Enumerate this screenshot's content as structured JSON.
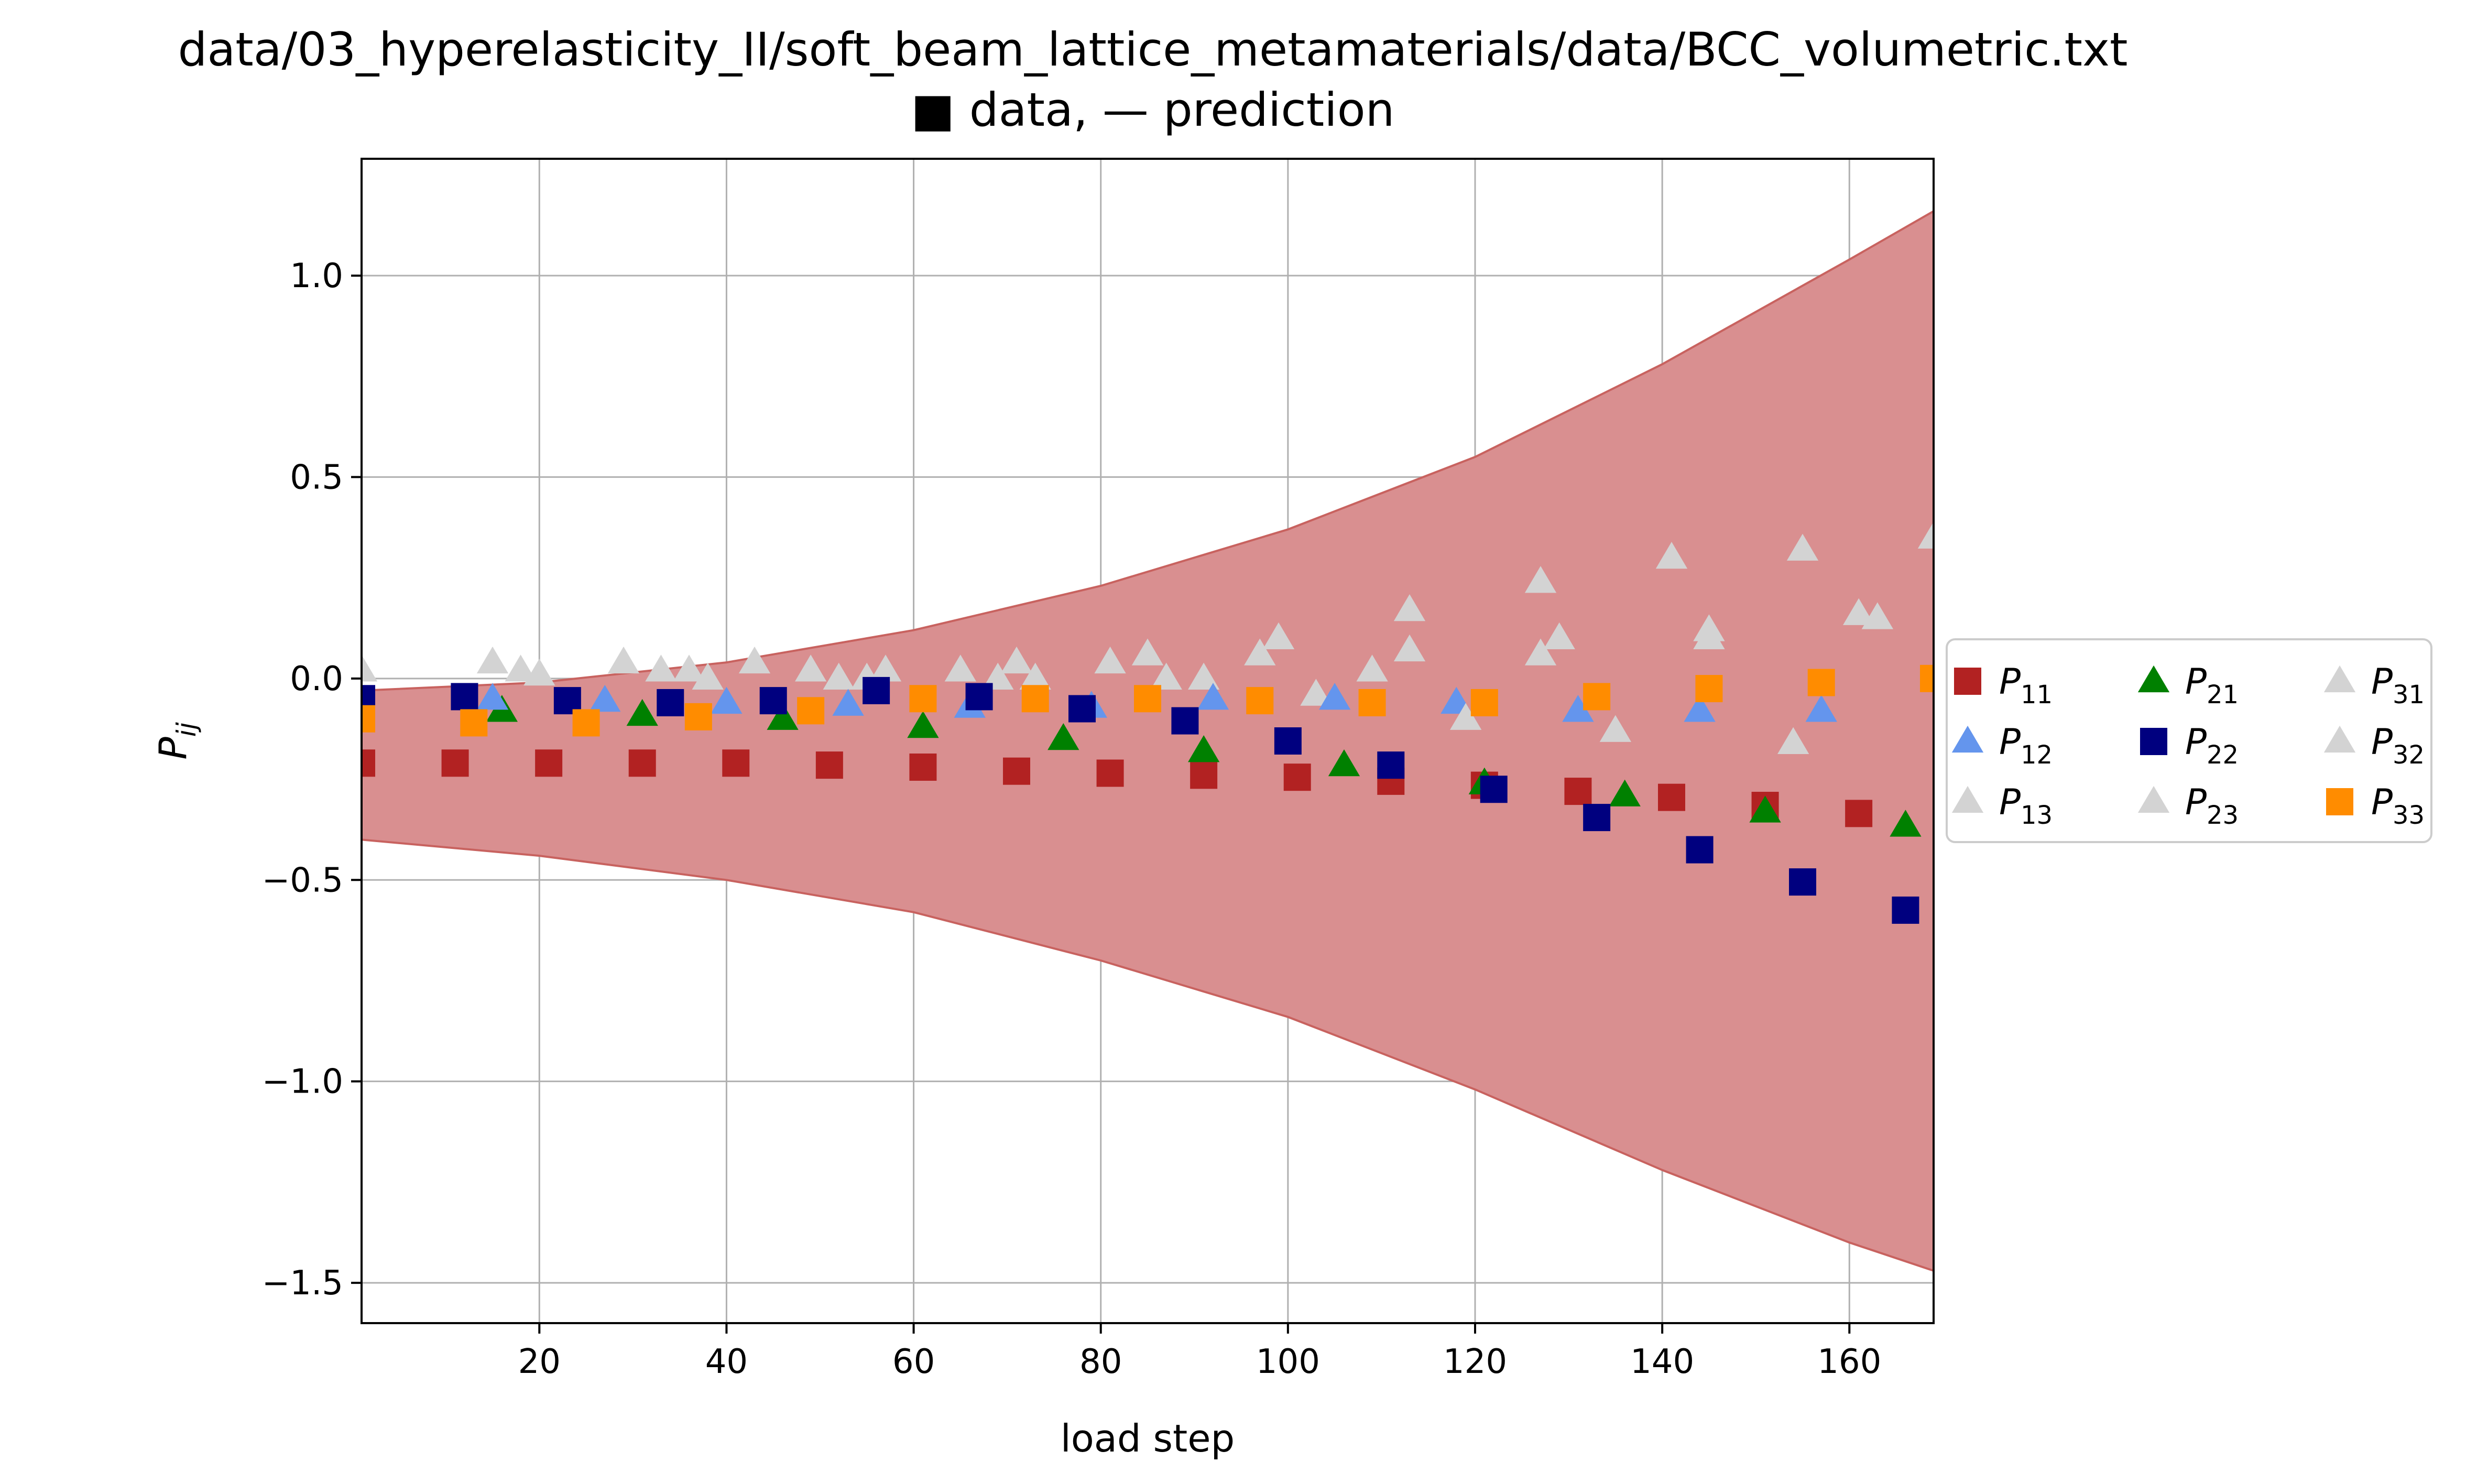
{
  "chart_data": {
    "type": "scatter",
    "title": "data/03_hyperelasticity_II/soft_beam_lattice_metamaterials/data/BCC_volumetric.txt",
    "subtitle": "■ data, — prediction",
    "xlabel": "load step",
    "ylabel_main": "P",
    "ylabel_sub": "ij",
    "xlim": [
      1,
      169
    ],
    "ylim": [
      -1.6,
      1.29
    ],
    "xticks": [
      20,
      40,
      60,
      80,
      100,
      120,
      140,
      160
    ],
    "yticks": [
      1.0,
      0.5,
      0.0,
      -0.5,
      -1.0,
      -1.5
    ],
    "grid": true,
    "legend_placement": "outside-right",
    "band": {
      "color": "#d98f90",
      "edge_color": "#c8625f",
      "x": [
        1,
        20,
        40,
        60,
        80,
        100,
        120,
        140,
        160,
        169
      ],
      "upper": [
        -0.03,
        -0.01,
        0.04,
        0.12,
        0.23,
        0.37,
        0.55,
        0.78,
        1.04,
        1.16
      ],
      "lower": [
        -0.4,
        -0.44,
        -0.5,
        -0.58,
        -0.7,
        -0.84,
        -1.02,
        -1.22,
        -1.4,
        -1.47
      ]
    },
    "series": [
      {
        "name_main": "P",
        "name_sub": "11",
        "marker": "square",
        "color": "#b22222",
        "x": [
          1,
          11,
          21,
          31,
          41,
          51,
          61,
          71,
          81,
          91,
          101,
          111,
          121,
          131,
          141,
          151,
          161
        ],
        "y": [
          -0.21,
          -0.21,
          -0.21,
          -0.21,
          -0.21,
          -0.215,
          -0.22,
          -0.23,
          -0.235,
          -0.24,
          -0.245,
          -0.255,
          -0.265,
          -0.28,
          -0.295,
          -0.315,
          -0.335
        ]
      },
      {
        "name_main": "P",
        "name_sub": "21",
        "marker": "triangle",
        "color": "#008000",
        "x": [
          16,
          31,
          46,
          61,
          76,
          91,
          106,
          121,
          136,
          151,
          166
        ],
        "y": [
          -0.08,
          -0.09,
          -0.1,
          -0.12,
          -0.15,
          -0.18,
          -0.215,
          -0.26,
          -0.29,
          -0.33,
          -0.365
        ]
      },
      {
        "name_main": "P",
        "name_sub": "31",
        "marker": "triangle",
        "color": "#d3d3d3",
        "x": [
          1,
          15,
          18,
          20,
          29,
          33,
          36,
          38,
          43,
          49,
          52,
          55,
          57,
          65,
          69,
          71,
          73,
          81,
          85,
          87,
          91,
          97,
          99,
          103,
          109,
          113
        ],
        "y": [
          0.02,
          0.04,
          0.02,
          0.01,
          0.04,
          0.02,
          0.02,
          0.0,
          0.04,
          0.02,
          0.0,
          0.0,
          0.02,
          0.02,
          0.0,
          0.04,
          0.0,
          0.04,
          0.06,
          0.0,
          0.0,
          0.06,
          0.1,
          -0.04,
          0.02,
          0.07
        ]
      },
      {
        "name_main": "P",
        "name_sub": "12",
        "marker": "triangle",
        "color": "#6495ed",
        "x": [
          15,
          27,
          40,
          53,
          66,
          79,
          92,
          105,
          118,
          131,
          144,
          157
        ],
        "y": [
          -0.05,
          -0.055,
          -0.06,
          -0.065,
          -0.07,
          -0.07,
          -0.05,
          -0.05,
          -0.06,
          -0.08,
          -0.08,
          -0.08
        ]
      },
      {
        "name_main": "P",
        "name_sub": "22",
        "marker": "square",
        "color": "#00007f",
        "x": [
          1,
          12,
          23,
          34,
          45,
          56,
          67,
          78,
          89,
          100,
          111,
          122,
          133,
          144,
          155,
          166
        ],
        "y": [
          -0.05,
          -0.045,
          -0.055,
          -0.06,
          -0.055,
          -0.03,
          -0.045,
          -0.075,
          -0.105,
          -0.155,
          -0.215,
          -0.275,
          -0.345,
          -0.425,
          -0.505,
          -0.575
        ]
      },
      {
        "name_main": "P",
        "name_sub": "32",
        "marker": "triangle",
        "color": "#d3d3d3",
        "x": [
          113,
          119,
          127,
          127,
          129,
          135,
          141,
          145,
          145,
          154,
          155,
          161,
          163,
          169
        ],
        "y": [
          0.17,
          -0.1,
          0.24,
          0.06,
          0.1,
          -0.13,
          0.3,
          0.12,
          0.1,
          -0.16,
          0.32,
          0.16,
          0.15,
          0.35
        ]
      },
      {
        "name_main": "P",
        "name_sub": "13",
        "marker": "triangle",
        "color": "#d3d3d3",
        "x": [],
        "y": []
      },
      {
        "name_main": "P",
        "name_sub": "23",
        "marker": "triangle",
        "color": "#d3d3d3",
        "x": [],
        "y": []
      },
      {
        "name_main": "P",
        "name_sub": "33",
        "marker": "square",
        "color": "#ff8c00",
        "x": [
          1,
          13,
          25,
          37,
          49,
          61,
          73,
          85,
          97,
          109,
          121,
          133,
          145,
          157,
          169
        ],
        "y": [
          -0.1,
          -0.11,
          -0.11,
          -0.095,
          -0.08,
          -0.05,
          -0.05,
          -0.05,
          -0.055,
          -0.06,
          -0.06,
          -0.045,
          -0.025,
          -0.01,
          0.0
        ]
      }
    ],
    "legend_order": [
      0,
      3,
      6,
      1,
      4,
      7,
      2,
      5,
      8
    ]
  }
}
